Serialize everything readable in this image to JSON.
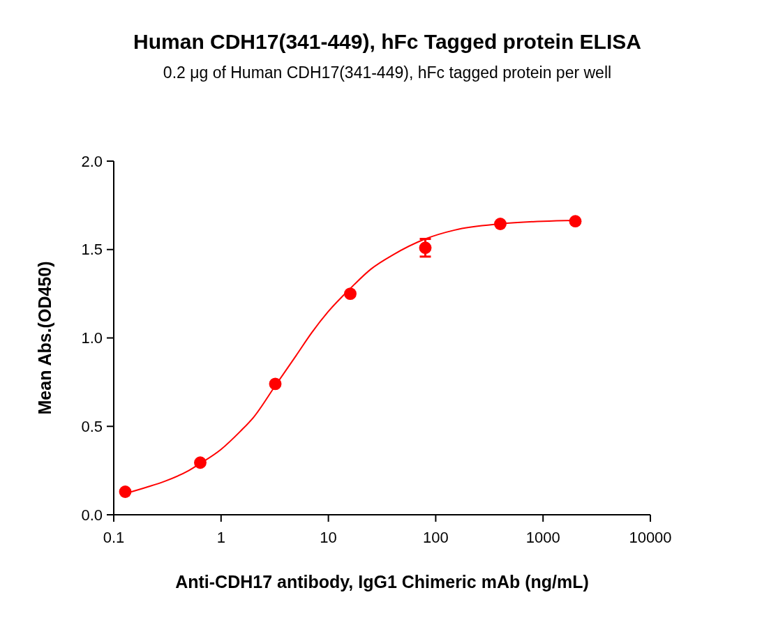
{
  "chart_data": {
    "type": "scatter",
    "title": "Human CDH17(341-449), hFc Tagged protein ELISA",
    "subtitle": "0.2 μg of Human CDH17(341-449), hFc tagged protein per well",
    "xlabel": "Anti-CDH17 antibody, IgG1 Chimeric mAb (ng/mL)",
    "ylabel": "Mean Abs.(OD450)",
    "log": "x",
    "xlim": [
      0.1,
      10000
    ],
    "ylim": [
      0,
      2
    ],
    "xticks": [
      0.1,
      1,
      10,
      100,
      1000,
      10000
    ],
    "yticks": [
      {
        "value": 0,
        "label": "0.0"
      },
      {
        "value": 0.5,
        "label": "0.5"
      },
      {
        "value": 1,
        "label": "1.0"
      },
      {
        "value": 1.5,
        "label": "1.5"
      },
      {
        "value": 2,
        "label": "2.0"
      }
    ],
    "grid": false,
    "series": [
      {
        "color": "#ff0000",
        "marker": "circle",
        "x": [
          0.128,
          0.64,
          3.2,
          16,
          80,
          400,
          2000
        ],
        "values": [
          0.13,
          0.295,
          0.74,
          1.25,
          1.51,
          1.645,
          1.66
        ],
        "errors": [
          null,
          null,
          null,
          null,
          0.05,
          null,
          null
        ]
      },
      {
        "type": "line",
        "color": "#ff0000",
        "marker": "none",
        "x": [
          0.128,
          0.2,
          0.3,
          0.5,
          0.64,
          1,
          1.5,
          2,
          3.2,
          5,
          7,
          10,
          16,
          25,
          40,
          80,
          150,
          400,
          1000,
          2000
        ],
        "values": [
          0.12,
          0.155,
          0.19,
          0.25,
          0.29,
          0.37,
          0.47,
          0.55,
          0.73,
          0.9,
          1.03,
          1.15,
          1.28,
          1.39,
          1.47,
          1.56,
          1.61,
          1.645,
          1.66,
          1.665
        ]
      }
    ]
  }
}
